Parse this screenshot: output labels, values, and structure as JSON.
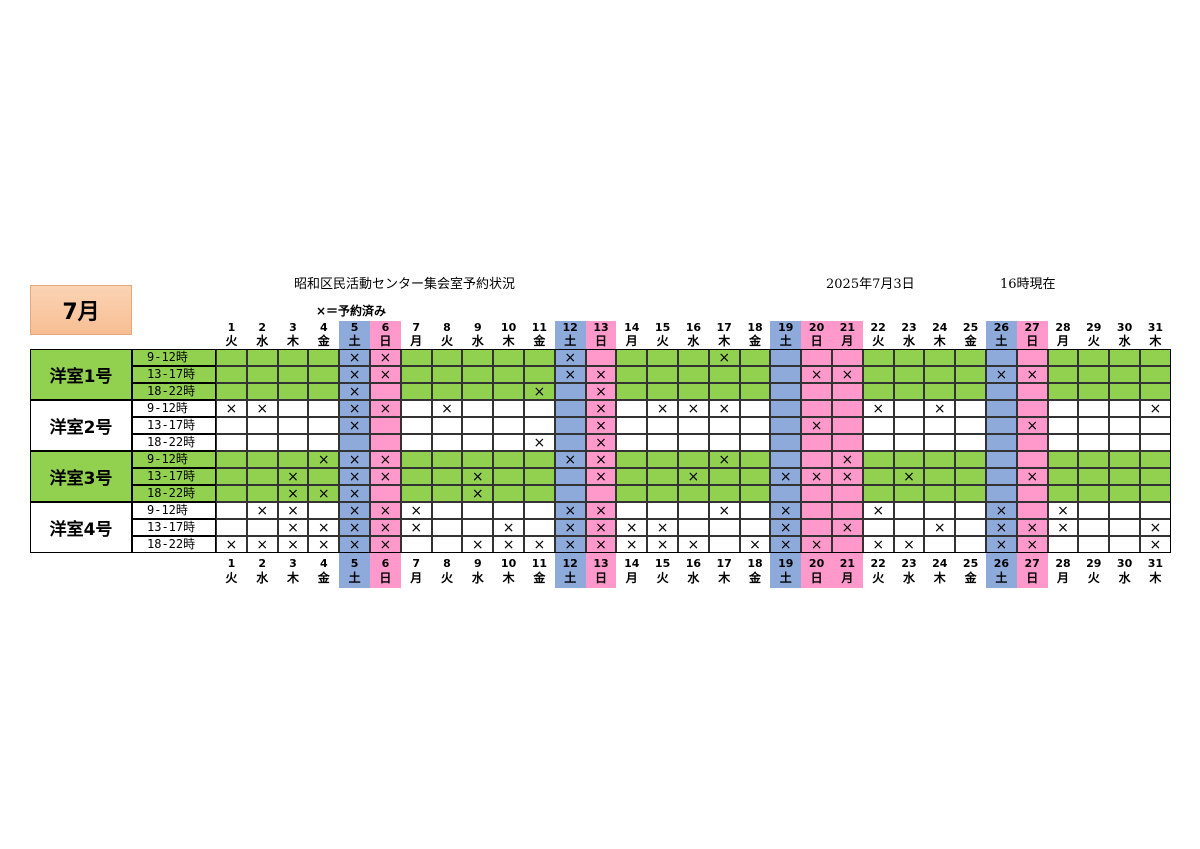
{
  "header": {
    "title": "昭和区民活動センター集会室予約状況",
    "date": "2025年7月3日",
    "time": "16時現在",
    "month_label": "7月",
    "legend": "×＝予約済み"
  },
  "colors": {
    "green": "#92d050",
    "saturday": "#8eaadb",
    "sunday_holiday": "#ff99cc",
    "white": "#ffffff"
  },
  "mark_symbol": "×",
  "days": [
    {
      "d": "1",
      "w": "火"
    },
    {
      "d": "2",
      "w": "水"
    },
    {
      "d": "3",
      "w": "木"
    },
    {
      "d": "4",
      "w": "金"
    },
    {
      "d": "5",
      "w": "土"
    },
    {
      "d": "6",
      "w": "日"
    },
    {
      "d": "7",
      "w": "月"
    },
    {
      "d": "8",
      "w": "火"
    },
    {
      "d": "9",
      "w": "水"
    },
    {
      "d": "10",
      "w": "木"
    },
    {
      "d": "11",
      "w": "金"
    },
    {
      "d": "12",
      "w": "土"
    },
    {
      "d": "13",
      "w": "日"
    },
    {
      "d": "14",
      "w": "月"
    },
    {
      "d": "15",
      "w": "火"
    },
    {
      "d": "16",
      "w": "水"
    },
    {
      "d": "17",
      "w": "木"
    },
    {
      "d": "18",
      "w": "金"
    },
    {
      "d": "19",
      "w": "土"
    },
    {
      "d": "20",
      "w": "日"
    },
    {
      "d": "21",
      "w": "月"
    },
    {
      "d": "22",
      "w": "火"
    },
    {
      "d": "23",
      "w": "水"
    },
    {
      "d": "24",
      "w": "木"
    },
    {
      "d": "25",
      "w": "金"
    },
    {
      "d": "26",
      "w": "土"
    },
    {
      "d": "27",
      "w": "日"
    },
    {
      "d": "28",
      "w": "月"
    },
    {
      "d": "29",
      "w": "火"
    },
    {
      "d": "30",
      "w": "水"
    },
    {
      "d": "31",
      "w": "木"
    }
  ],
  "saturdays": [
    5,
    12,
    19,
    26
  ],
  "pink_days": [
    6,
    13,
    20,
    21,
    27
  ],
  "rooms": [
    {
      "name": "洋室1号",
      "green": true,
      "slots": [
        {
          "label": "9-12時",
          "booked": [
            5,
            6,
            12,
            17
          ]
        },
        {
          "label": "13-17時",
          "booked": [
            5,
            6,
            12,
            13,
            20,
            21,
            26,
            27
          ]
        },
        {
          "label": "18-22時",
          "booked": [
            5,
            11,
            13
          ]
        }
      ]
    },
    {
      "name": "洋室2号",
      "green": false,
      "slots": [
        {
          "label": "9-12時",
          "booked": [
            1,
            2,
            5,
            6,
            8,
            13,
            15,
            16,
            17,
            22,
            24,
            31
          ]
        },
        {
          "label": "13-17時",
          "booked": [
            5,
            13,
            20,
            27
          ]
        },
        {
          "label": "18-22時",
          "booked": [
            11,
            13
          ]
        }
      ]
    },
    {
      "name": "洋室3号",
      "green": true,
      "slots": [
        {
          "label": "9-12時",
          "booked": [
            4,
            5,
            6,
            12,
            13,
            17,
            21
          ]
        },
        {
          "label": "13-17時",
          "booked": [
            3,
            5,
            6,
            9,
            13,
            16,
            19,
            20,
            21,
            23,
            27
          ]
        },
        {
          "label": "18-22時",
          "booked": [
            3,
            4,
            5,
            9
          ]
        }
      ]
    },
    {
      "name": "洋室4号",
      "green": false,
      "slots": [
        {
          "label": "9-12時",
          "booked": [
            2,
            3,
            5,
            6,
            7,
            12,
            13,
            17,
            19,
            22,
            26,
            28
          ]
        },
        {
          "label": "13-17時",
          "booked": [
            3,
            4,
            5,
            6,
            7,
            10,
            12,
            13,
            14,
            15,
            19,
            21,
            24,
            26,
            27,
            28,
            31
          ]
        },
        {
          "label": "18-22時",
          "booked": [
            1,
            2,
            3,
            4,
            5,
            6,
            9,
            10,
            11,
            12,
            13,
            14,
            15,
            16,
            18,
            19,
            20,
            22,
            23,
            26,
            27,
            31
          ]
        }
      ]
    }
  ]
}
